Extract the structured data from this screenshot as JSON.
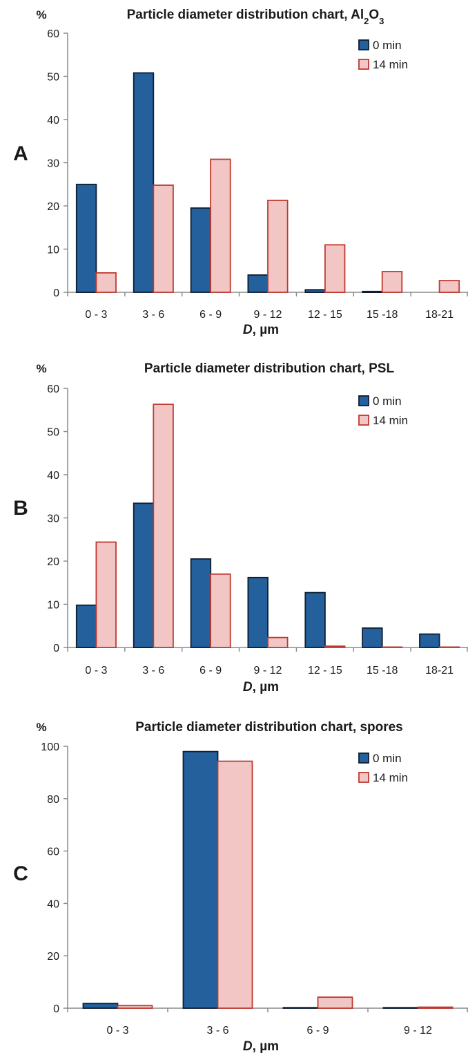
{
  "chart_data": [
    {
      "type": "bar",
      "panel_label": "A",
      "title": "Particle diameter distribution chart, Al",
      "title_sub": [
        "2",
        "O",
        "3"
      ],
      "ylabel": "%",
      "xlabel_italic": "D",
      "xlabel_rest": ", µm",
      "ylim": [
        0,
        60
      ],
      "yticks": [
        0,
        10,
        20,
        30,
        40,
        50,
        60
      ],
      "categories": [
        "0 - 3",
        "3 - 6",
        "6 - 9",
        "9 - 12",
        "12 - 15",
        "15 -18",
        "18-21"
      ],
      "legend_position": "top-right",
      "series": [
        {
          "name": "0 min",
          "color": "#23609c",
          "stroke": "#0d1e33",
          "values": [
            25,
            50.8,
            19.5,
            4,
            0.6,
            0.2,
            0
          ]
        },
        {
          "name": "14 min",
          "color": "#f1c6c4",
          "stroke": "#c0392f",
          "values": [
            4.5,
            24.8,
            30.8,
            21.3,
            11,
            4.8,
            2.7
          ]
        }
      ]
    },
    {
      "type": "bar",
      "panel_label": "B",
      "title": "Particle diameter distribution chart, PSL",
      "ylabel": "%",
      "xlabel_italic": "D",
      "xlabel_rest": ", µm",
      "ylim": [
        0,
        60
      ],
      "yticks": [
        0,
        10,
        20,
        30,
        40,
        50,
        60
      ],
      "categories": [
        "0 - 3",
        "3 - 6",
        "6 - 9",
        "9 - 12",
        "12 - 15",
        "15 -18",
        "18-21"
      ],
      "legend_position": "top-right",
      "series": [
        {
          "name": "0 min",
          "color": "#23609c",
          "stroke": "#0d1e33",
          "values": [
            9.8,
            33.4,
            20.5,
            16.2,
            12.7,
            4.5,
            3.1
          ]
        },
        {
          "name": "14 min",
          "color": "#f1c6c4",
          "stroke": "#c0392f",
          "values": [
            24.4,
            56.3,
            17,
            2.3,
            0.3,
            0.1,
            0.1
          ]
        }
      ]
    },
    {
      "type": "bar",
      "panel_label": "C",
      "title": "Particle diameter distribution chart, spores",
      "ylabel": "%",
      "xlabel_italic": "D",
      "xlabel_rest": ", µm",
      "ylim": [
        0,
        100
      ],
      "yticks": [
        0,
        20,
        40,
        60,
        80,
        100
      ],
      "categories": [
        "0 - 3",
        "3 - 6",
        "6 - 9",
        "9 - 12"
      ],
      "legend_position": "top-right",
      "series": [
        {
          "name": "0 min",
          "color": "#23609c",
          "stroke": "#0d1e33",
          "values": [
            1.8,
            98,
            0.2,
            0.2
          ]
        },
        {
          "name": "14 min",
          "color": "#f1c6c4",
          "stroke": "#c0392f",
          "values": [
            1,
            94.3,
            4.2,
            0.4
          ]
        }
      ]
    }
  ]
}
